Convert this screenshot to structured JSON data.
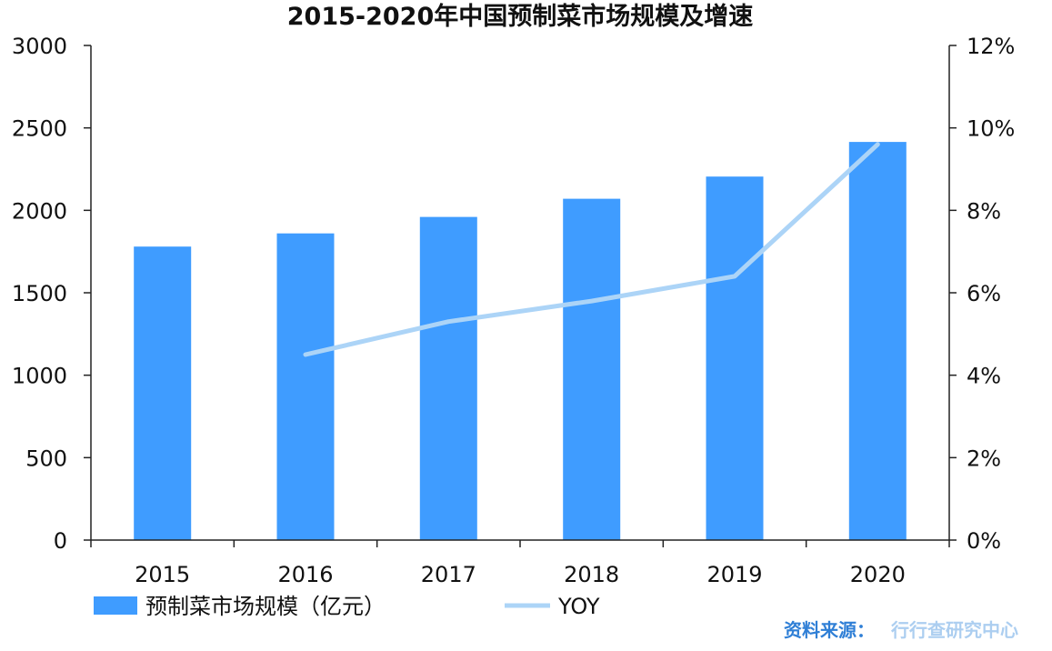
{
  "chart_data": {
    "type": "bar",
    "title": "2015-2020年中国预制菜市场规模及增速",
    "categories": [
      "2015",
      "2016",
      "2017",
      "2018",
      "2019",
      "2020"
    ],
    "series": [
      {
        "name": "预制菜市场规模（亿元）",
        "type": "bar",
        "axis": "left",
        "values": [
          1780,
          1860,
          1960,
          2070,
          2205,
          2415
        ]
      },
      {
        "name": "YOY",
        "type": "line",
        "axis": "right",
        "values": [
          null,
          4.5,
          5.3,
          5.8,
          6.4,
          9.6
        ]
      }
    ],
    "y_left": {
      "ylim": [
        0,
        3000
      ],
      "ticks": [
        "0",
        "500",
        "1000",
        "1500",
        "2000",
        "2500",
        "3000"
      ]
    },
    "y_right": {
      "ylim": [
        0,
        12
      ],
      "ticks": [
        "0%",
        "2%",
        "4%",
        "6%",
        "8%",
        "10%",
        "12%"
      ]
    },
    "grid": false,
    "legend_position": "bottom-left",
    "colors": {
      "bar": "#3f9cff",
      "line": "#acd4f7",
      "source": "#2f7fd6"
    }
  },
  "footer": {
    "source_label": "资料来源：",
    "source_name": "行行查研究中心"
  }
}
